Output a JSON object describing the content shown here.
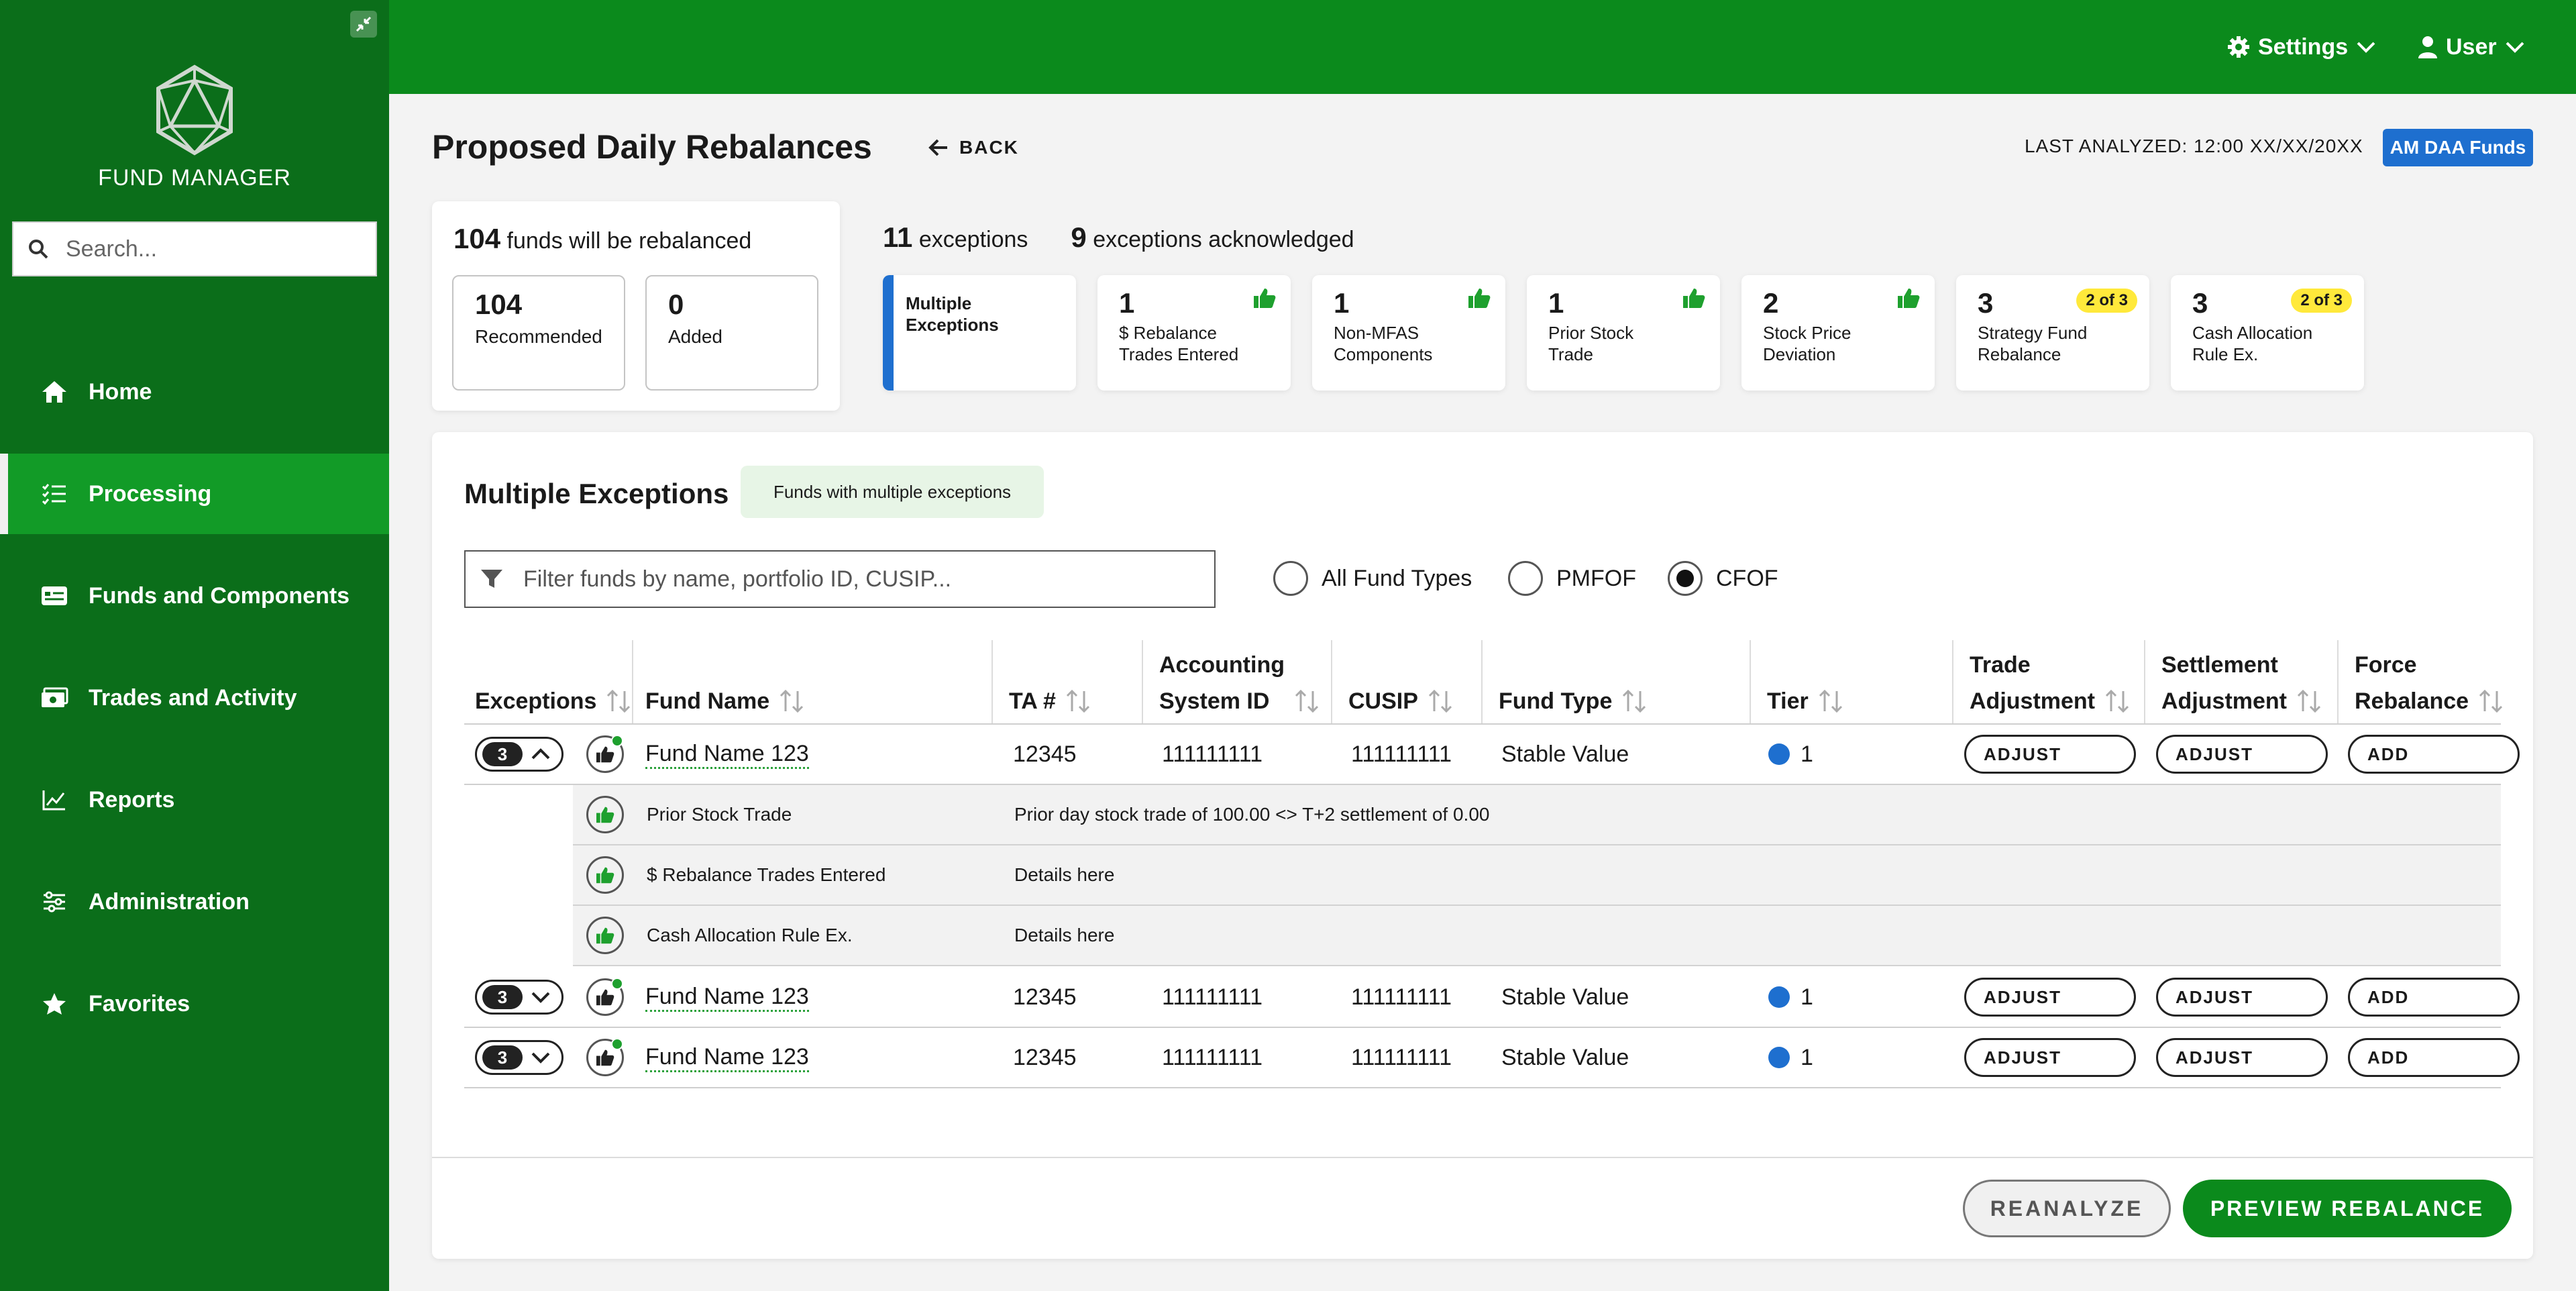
{
  "app": {
    "name": "FUND MANAGER"
  },
  "sidebar": {
    "search_placeholder": "Search...",
    "items": [
      {
        "label": "Home",
        "icon": "home-icon"
      },
      {
        "label": "Processing",
        "icon": "checklist-icon",
        "active": true
      },
      {
        "label": "Funds and Components",
        "icon": "card-icon"
      },
      {
        "label": "Trades and Activity",
        "icon": "money-icon"
      },
      {
        "label": "Reports",
        "icon": "chart-line-icon"
      },
      {
        "label": "Administration",
        "icon": "sliders-icon"
      },
      {
        "label": "Favorites",
        "icon": "star-icon"
      }
    ]
  },
  "header": {
    "settings_label": "Settings",
    "user_label": "User"
  },
  "page": {
    "title": "Proposed Daily Rebalances",
    "back_label": "BACK",
    "last_analyzed": "LAST ANALYZED: 12:00 XX/XX/20XX",
    "fund_badge": "AM DAA Funds"
  },
  "summary": {
    "count": "104",
    "text": "funds will be rebalanced",
    "recommended_num": "104",
    "recommended_label": "Recommended",
    "added_num": "0",
    "added_label": "Added"
  },
  "exceptions_summary": {
    "exceptions_count": "11",
    "exceptions_label": "exceptions",
    "ack_count": "9",
    "ack_label": "exceptions acknowledged"
  },
  "exception_cards": [
    {
      "label": "Multiple Exceptions",
      "active": true
    },
    {
      "num": "1",
      "label1": "$ Rebalance",
      "label2": "Trades Entered",
      "status": "thumbs-up"
    },
    {
      "num": "1",
      "label1": "Non-MFAS",
      "label2": "Components",
      "status": "thumbs-up"
    },
    {
      "num": "1",
      "label1": "Prior Stock",
      "label2": "Trade",
      "status": "thumbs-up"
    },
    {
      "num": "2",
      "label1": "Stock Price",
      "label2": "Deviation",
      "status": "thumbs-up"
    },
    {
      "num": "3",
      "label1": "Strategy Fund",
      "label2": "Rebalance",
      "pill": "2 of 3"
    },
    {
      "num": "3",
      "label1": "Cash Allocation",
      "label2": "Rule Ex.",
      "pill": "2 of 3"
    }
  ],
  "panel": {
    "title": "Multiple Exceptions",
    "tag": "Funds with multiple exceptions",
    "filter_placeholder": "Filter funds by name, portfolio ID, CUSIP...",
    "radios": [
      {
        "label": "All Fund Types",
        "checked": false
      },
      {
        "label": "PMFOF",
        "checked": false
      },
      {
        "label": "CFOF",
        "checked": true
      }
    ]
  },
  "table": {
    "headers": {
      "exceptions": "Exceptions",
      "fund_name": "Fund Name",
      "ta": "TA #",
      "acct_1": "Accounting",
      "acct_2": "System ID",
      "cusip": "CUSIP",
      "fund_type": "Fund Type",
      "tier": "Tier",
      "trade_1": "Trade",
      "trade_2": "Adjustment",
      "settle_1": "Settlement",
      "settle_2": "Adjustment",
      "force_1": "Force",
      "force_2": "Rebalance"
    },
    "rows": [
      {
        "exceptions": "3",
        "expanded": true,
        "fund_name": "Fund Name 123",
        "ta": "12345",
        "acct": "111111111",
        "cusip": "111111111",
        "fund_type": "Stable Value",
        "tier": "1",
        "trade_btn": "ADJUST",
        "settle_btn": "ADJUST",
        "force_btn": "ADD"
      },
      {
        "exceptions": "3",
        "expanded": false,
        "fund_name": "Fund Name 123",
        "ta": "12345",
        "acct": "111111111",
        "cusip": "111111111",
        "fund_type": "Stable Value",
        "tier": "1",
        "trade_btn": "ADJUST",
        "settle_btn": "ADJUST",
        "force_btn": "ADD"
      },
      {
        "exceptions": "3",
        "expanded": false,
        "fund_name": "Fund Name 123",
        "ta": "12345",
        "acct": "111111111",
        "cusip": "111111111",
        "fund_type": "Stable Value",
        "tier": "1",
        "trade_btn": "ADJUST",
        "settle_btn": "ADJUST",
        "force_btn": "ADD"
      }
    ],
    "subrows": [
      {
        "name": "Prior Stock Trade",
        "detail": "Prior day stock trade of 100.00 <> T+2 settlement of 0.00"
      },
      {
        "name": "$ Rebalance Trades Entered",
        "detail": "Details here"
      },
      {
        "name": "Cash Allocation Rule Ex.",
        "detail": "Details here"
      }
    ]
  },
  "footer": {
    "reanalyze_label": "REANALYZE",
    "preview_label": "PREVIEW REBALANCE"
  },
  "colors": {
    "sidebar": "#0b6e1a",
    "header": "#0b8a1c",
    "active_nav": "#129b27",
    "accent_blue": "#1e6fcf",
    "pill_yellow": "#ffe93b"
  }
}
